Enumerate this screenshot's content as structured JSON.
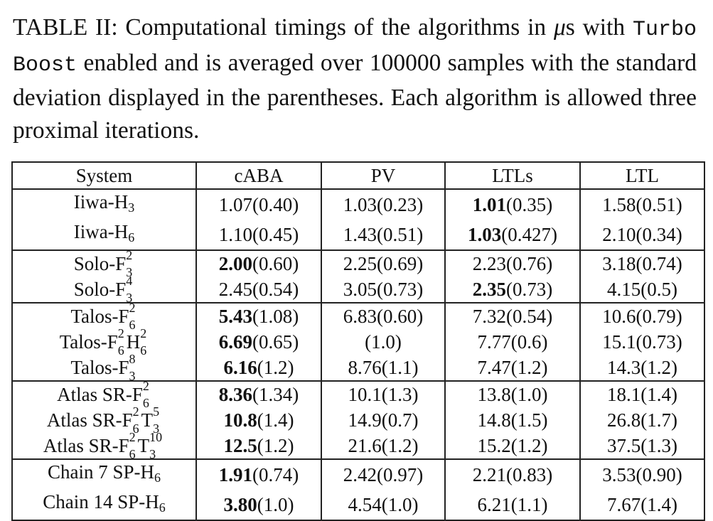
{
  "caption": {
    "prefix": "TABLE II: Computational timings of the algorithms in ",
    "mu": "μ",
    "unit_suffix": "s with ",
    "mono": "Turbo Boost",
    "rest": " enabled and is averaged over 100000 samples with the standard deviation displayed in the parentheses. Each algorithm is allowed three proximal iterations."
  },
  "table": {
    "headers": [
      "System",
      "cABA",
      "PV",
      "LTLs",
      "LTL"
    ],
    "groups": [
      [
        {
          "system": [
            {
              "t": "Iiwa-H"
            },
            {
              "sub": "3"
            }
          ],
          "cells": [
            {
              "v": "1.07",
              "sd": "(0.40)"
            },
            {
              "v": "1.03",
              "sd": "(0.23)"
            },
            {
              "v": "1.01",
              "sd": "(0.35)",
              "best": true
            },
            {
              "v": "1.58",
              "sd": "(0.51)"
            }
          ]
        },
        {
          "system": [
            {
              "t": "Iiwa-H"
            },
            {
              "sub": "6"
            }
          ],
          "cells": [
            {
              "v": "1.10",
              "sd": "(0.45)"
            },
            {
              "v": "1.43",
              "sd": "(0.51)"
            },
            {
              "v": "1.03",
              "sd": "(0.427)",
              "best": true
            },
            {
              "v": "2.10",
              "sd": "(0.34)"
            }
          ]
        }
      ],
      [
        {
          "system": [
            {
              "t": "Solo-F"
            },
            {
              "sup": "2",
              "sub": "3"
            }
          ],
          "cells": [
            {
              "v": "2.00",
              "sd": "(0.60)",
              "best": true
            },
            {
              "v": "2.25",
              "sd": "(0.69)"
            },
            {
              "v": "2.23",
              "sd": "(0.76)"
            },
            {
              "v": "3.18",
              "sd": "(0.74)"
            }
          ]
        },
        {
          "system": [
            {
              "t": "Solo-F"
            },
            {
              "sup": "4",
              "sub": "3"
            }
          ],
          "cells": [
            {
              "v": "2.45",
              "sd": "(0.54)"
            },
            {
              "v": "3.05",
              "sd": "(0.73)"
            },
            {
              "v": "2.35",
              "sd": "(0.73)",
              "best": true
            },
            {
              "v": "4.15",
              "sd": "(0.5)"
            }
          ]
        }
      ],
      [
        {
          "system": [
            {
              "t": "Talos-F"
            },
            {
              "sup": "2",
              "sub": "6"
            }
          ],
          "cells": [
            {
              "v": "5.43",
              "sd": "(1.08)",
              "best": true
            },
            {
              "v": "6.83",
              "sd": "(0.60)"
            },
            {
              "v": "7.32",
              "sd": "(0.54)"
            },
            {
              "v": "10.6",
              "sd": "(0.79)"
            }
          ]
        },
        {
          "system": [
            {
              "t": "Talos-F"
            },
            {
              "sup": "2",
              "sub": "6"
            },
            {
              "t": "H"
            },
            {
              "sup": "2",
              "sub": "6"
            }
          ],
          "cells": [
            {
              "v": "6.69",
              "sd": "(0.65)",
              "best": true
            },
            {
              "v": "",
              "sd": "(1.0)"
            },
            {
              "v": "7.77",
              "sd": "(0.6)"
            },
            {
              "v": "15.1",
              "sd": "(0.73)"
            }
          ]
        },
        {
          "system": [
            {
              "t": "Talos-F"
            },
            {
              "sup": "8",
              "sub": "3"
            }
          ],
          "cells": [
            {
              "v": "6.16",
              "sd": "(1.2)",
              "best": true
            },
            {
              "v": "8.76",
              "sd": "(1.1)"
            },
            {
              "v": "7.47",
              "sd": "(1.2)"
            },
            {
              "v": "14.3",
              "sd": "(1.2)"
            }
          ]
        }
      ],
      [
        {
          "system": [
            {
              "t": "Atlas SR-F"
            },
            {
              "sup": "2",
              "sub": "6"
            }
          ],
          "cells": [
            {
              "v": "8.36",
              "sd": "(1.34)",
              "best": true
            },
            {
              "v": "10.1",
              "sd": "(1.3)"
            },
            {
              "v": "13.8",
              "sd": "(1.0)"
            },
            {
              "v": "18.1",
              "sd": "(1.4)"
            }
          ]
        },
        {
          "system": [
            {
              "t": "Atlas SR-F"
            },
            {
              "sup": "2",
              "sub": "6"
            },
            {
              "t": "T"
            },
            {
              "sup": "5",
              "sub": "3"
            }
          ],
          "cells": [
            {
              "v": "10.8",
              "sd": "(1.4)",
              "best": true
            },
            {
              "v": "14.9",
              "sd": "(0.7)"
            },
            {
              "v": "14.8",
              "sd": "(1.5)"
            },
            {
              "v": "26.8",
              "sd": "(1.7)"
            }
          ]
        },
        {
          "system": [
            {
              "t": "Atlas SR-F"
            },
            {
              "sup": "2",
              "sub": "6"
            },
            {
              "t": "T"
            },
            {
              "sup": "10",
              "sub": "3"
            }
          ],
          "cells": [
            {
              "v": "12.5",
              "sd": "(1.2)",
              "best": true
            },
            {
              "v": "21.6",
              "sd": "(1.2)"
            },
            {
              "v": "15.2",
              "sd": "(1.2)"
            },
            {
              "v": "37.5",
              "sd": "(1.3)"
            }
          ]
        }
      ],
      [
        {
          "system": [
            {
              "t": "Chain 7 SP-H"
            },
            {
              "sub": "6"
            }
          ],
          "cells": [
            {
              "v": "1.91",
              "sd": "(0.74)",
              "best": true
            },
            {
              "v": "2.42",
              "sd": "(0.97)"
            },
            {
              "v": "2.21",
              "sd": "(0.83)"
            },
            {
              "v": "3.53",
              "sd": "(0.90)"
            }
          ]
        },
        {
          "system": [
            {
              "t": "Chain 14 SP-H"
            },
            {
              "sub": "6"
            }
          ],
          "cells": [
            {
              "v": "3.80",
              "sd": "(1.0)",
              "best": true
            },
            {
              "v": "4.54",
              "sd": "(1.0)"
            },
            {
              "v": "6.21",
              "sd": "(1.1)"
            },
            {
              "v": "7.67",
              "sd": "(1.4)"
            }
          ]
        }
      ]
    ]
  }
}
